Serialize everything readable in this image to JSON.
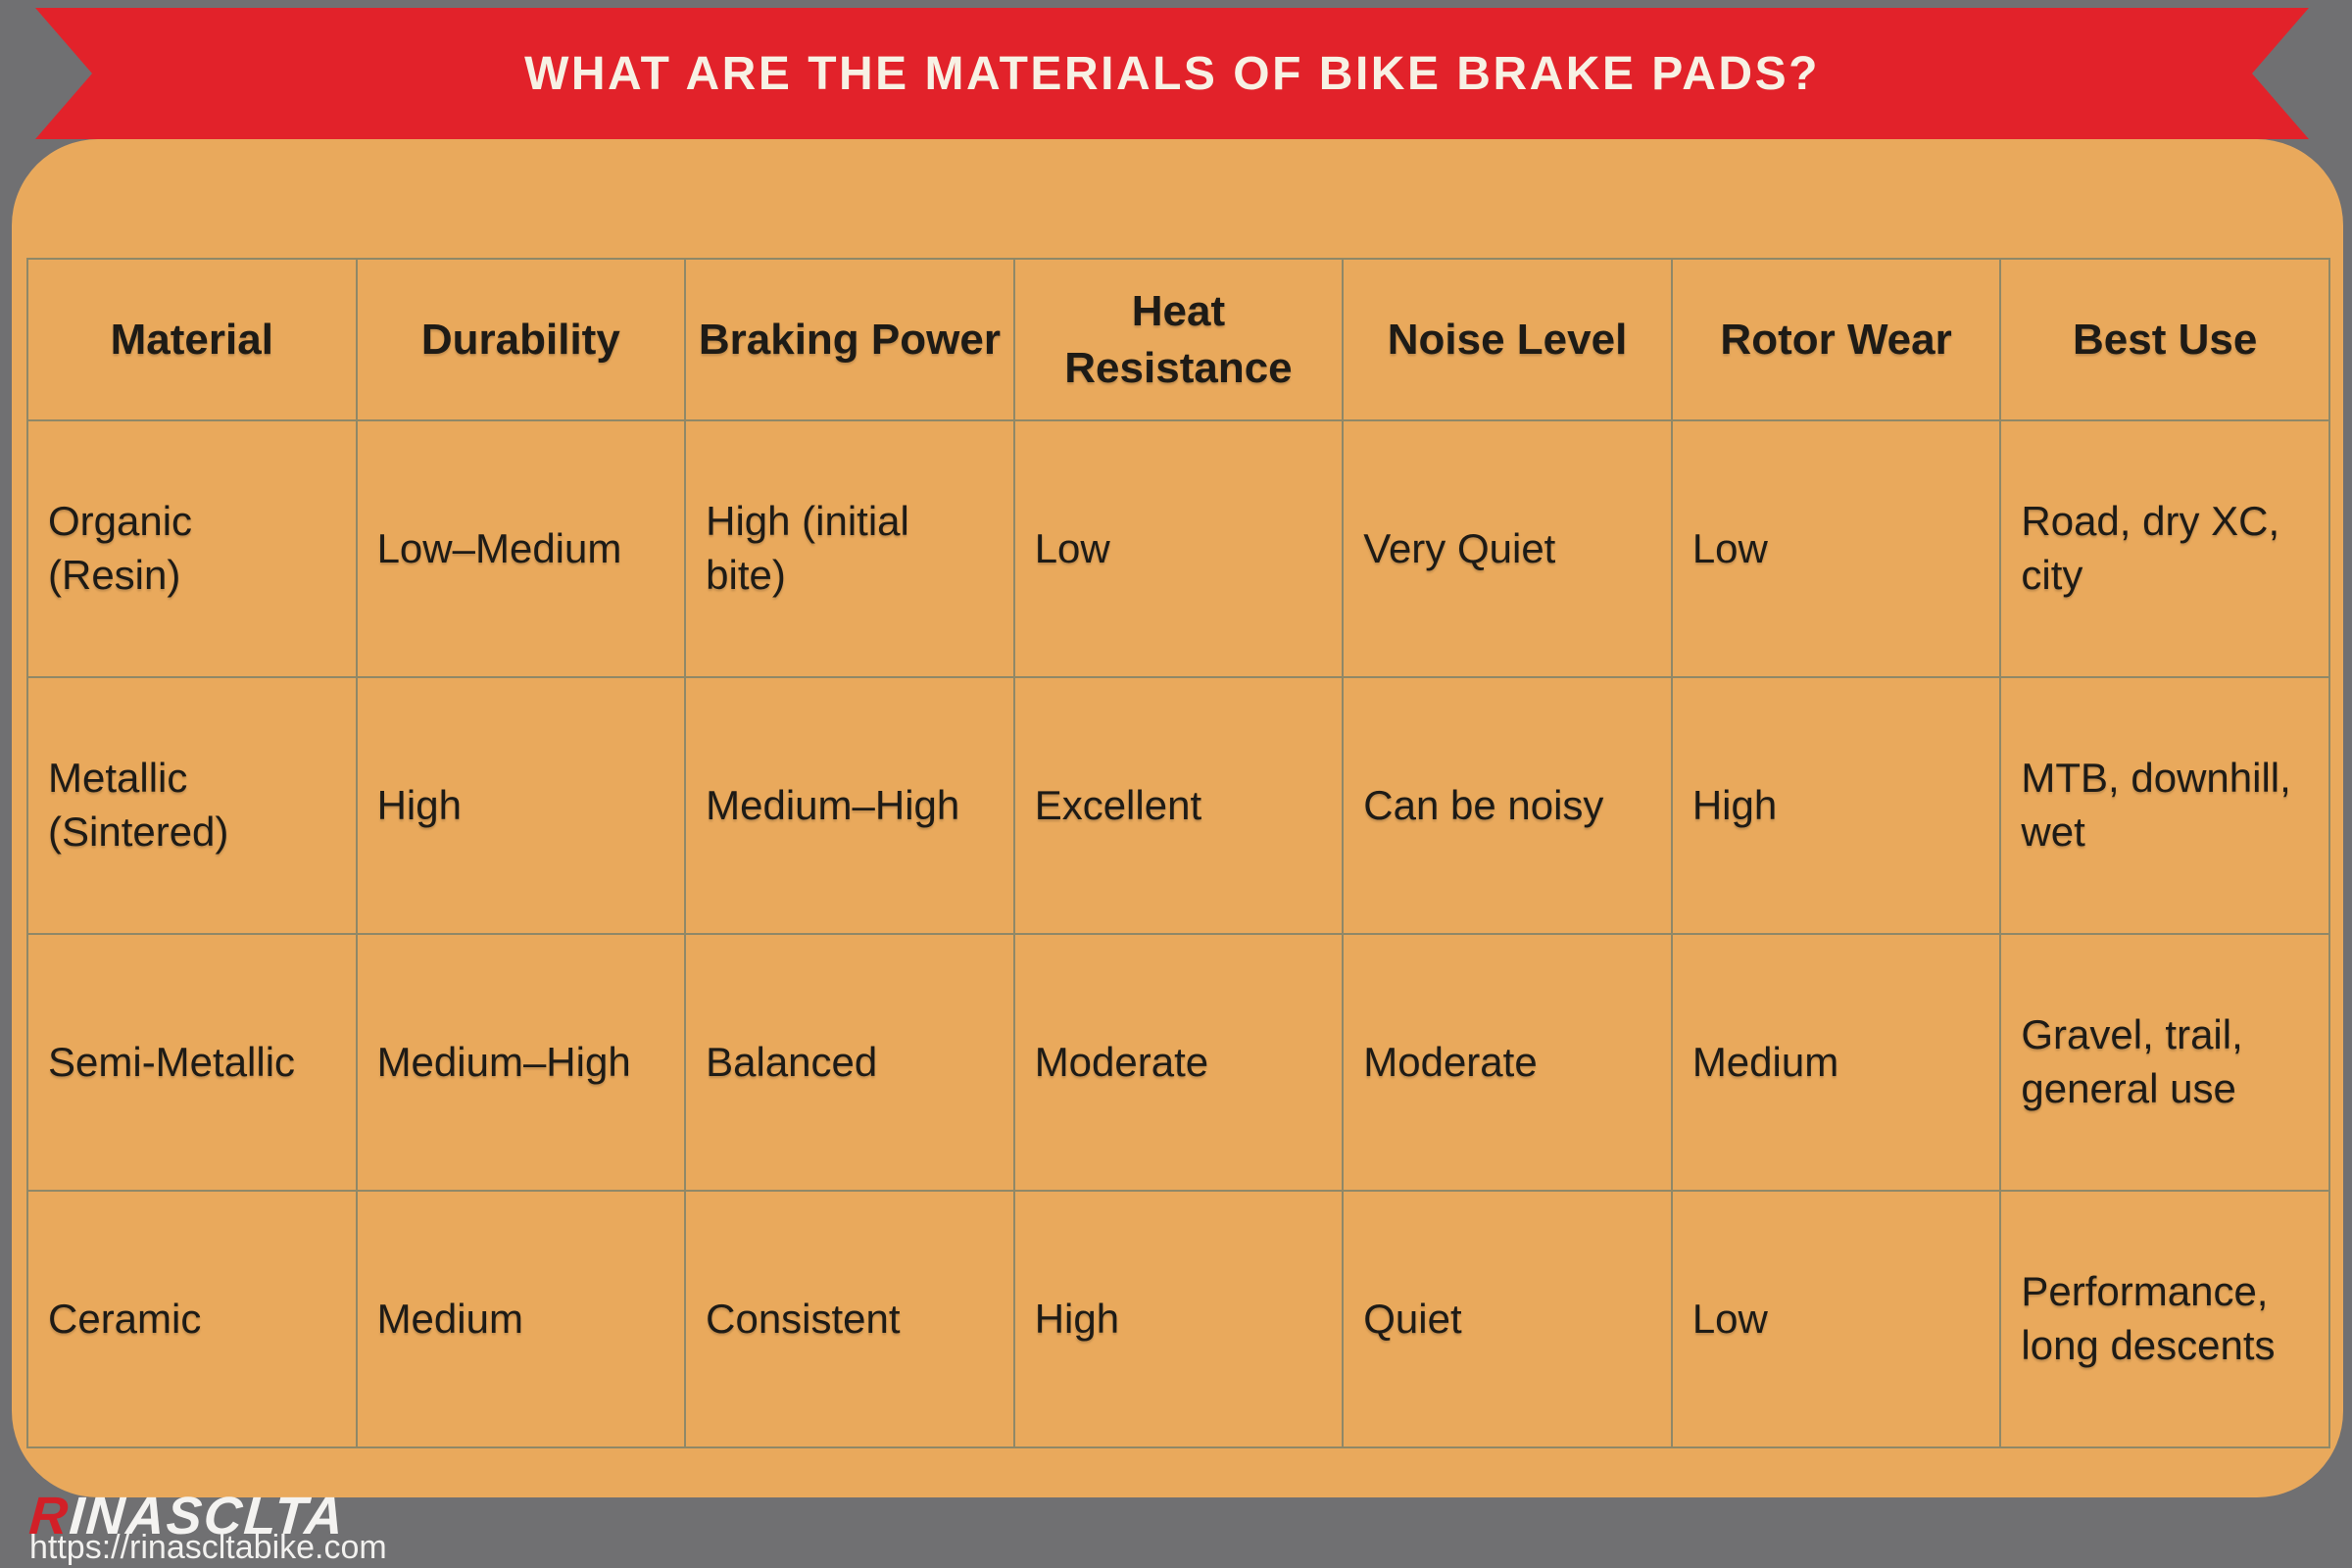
{
  "title": "WHAT ARE THE MATERIALS OF BIKE BRAKE PADS?",
  "table": {
    "headers": [
      "Material",
      "Durability",
      "Braking Power",
      "Heat Resistance",
      "Noise Level",
      "Rotor Wear",
      "Best Use"
    ],
    "rows": [
      [
        "Organic (Resin)",
        "Low–Medium",
        "High (initial bite)",
        "Low",
        "Very Quiet",
        "Low",
        "Road, dry XC, city"
      ],
      [
        "Metallic (Sintered)",
        "High",
        "Medium–High",
        "Excellent",
        "Can be noisy",
        "High",
        "MTB, downhill, wet"
      ],
      [
        "Semi-Metallic",
        "Medium–High",
        "Balanced",
        "Moderate",
        "Moderate",
        "Medium",
        "Gravel, trail, general use"
      ],
      [
        "Ceramic",
        "Medium",
        "Consistent",
        "High",
        "Quiet",
        "Low",
        "Performance, long descents"
      ]
    ]
  },
  "footer": {
    "brand_first_letter": "R",
    "brand_rest": "INASCLTA",
    "url": "https://rinascltabike.com"
  },
  "colors": {
    "background_gray": "#707072",
    "ribbon_red": "#e2222a",
    "panel_orange": "#e9a95c",
    "table_border": "#8f8868",
    "cell_text": "#1e1b16",
    "title_text": "#f7f1e4",
    "brand_red": "#d21f27",
    "brand_white": "#f4f3f1"
  }
}
